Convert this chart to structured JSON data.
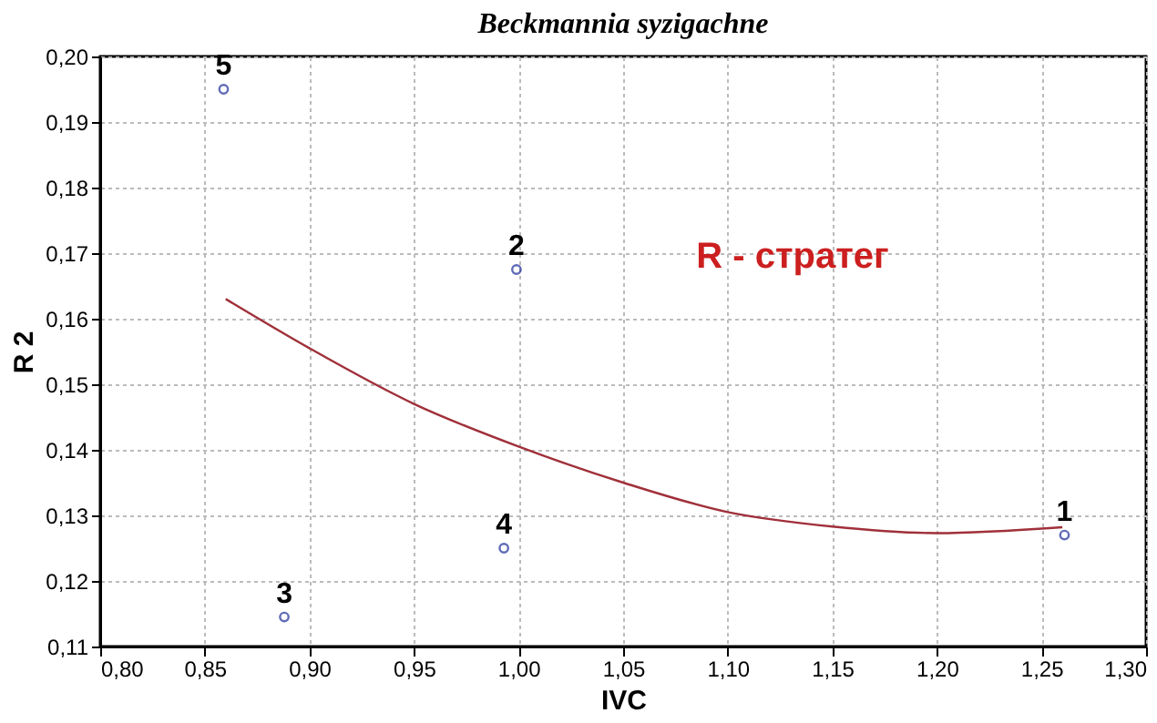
{
  "chart_data": {
    "type": "scatter",
    "title": "Beckmannia syzigachne",
    "xlabel": "IVC",
    "ylabel": "R 2",
    "xlim": [
      0.8,
      1.3
    ],
    "ylim": [
      0.11,
      0.2
    ],
    "xticks": [
      {
        "value": 0.8,
        "label": "0,80"
      },
      {
        "value": 0.85,
        "label": "0,85"
      },
      {
        "value": 0.9,
        "label": "0,90"
      },
      {
        "value": 0.95,
        "label": "0,95"
      },
      {
        "value": 1.0,
        "label": "1,00"
      },
      {
        "value": 1.05,
        "label": "1,05"
      },
      {
        "value": 1.1,
        "label": "1,10"
      },
      {
        "value": 1.15,
        "label": "1,15"
      },
      {
        "value": 1.2,
        "label": "1,20"
      },
      {
        "value": 1.25,
        "label": "1,25"
      },
      {
        "value": 1.3,
        "label": "1,30"
      }
    ],
    "yticks": [
      {
        "value": 0.11,
        "label": "0,11"
      },
      {
        "value": 0.12,
        "label": "0,12"
      },
      {
        "value": 0.13,
        "label": "0,13"
      },
      {
        "value": 0.14,
        "label": "0,14"
      },
      {
        "value": 0.15,
        "label": "0,15"
      },
      {
        "value": 0.16,
        "label": "0,16"
      },
      {
        "value": 0.17,
        "label": "0,17"
      },
      {
        "value": 0.18,
        "label": "0,18"
      },
      {
        "value": 0.19,
        "label": "0,19"
      },
      {
        "value": 0.2,
        "label": "0,20"
      }
    ],
    "grid": true,
    "annotations": [
      "R - стратег",
      {
        "text": "1",
        "x": 1.261,
        "y": 0.127
      },
      {
        "text": "2",
        "x": 0.999,
        "y": 0.1675
      },
      {
        "text": "3",
        "x": 0.888,
        "y": 0.1145
      },
      {
        "text": "4",
        "x": 0.993,
        "y": 0.125
      },
      {
        "text": "5",
        "x": 0.859,
        "y": 0.195
      }
    ],
    "series": [
      {
        "color": "#1f2f9a",
        "marker": "circle",
        "x": [
          1.261,
          0.999,
          0.888,
          0.993,
          0.859
        ],
        "values": [
          0.127,
          0.1675,
          0.1145,
          0.125,
          0.195
        ]
      },
      {
        "type": "line",
        "color": "#a0303a",
        "line_style": "solid",
        "marker": "none",
        "x": [
          0.86,
          0.9,
          0.95,
          1.0,
          1.05,
          1.1,
          1.15,
          1.2,
          1.26
        ],
        "values": [
          0.163,
          0.1555,
          0.147,
          0.1405,
          0.135,
          0.1305,
          0.1283,
          0.1273,
          0.1282
        ]
      }
    ]
  }
}
